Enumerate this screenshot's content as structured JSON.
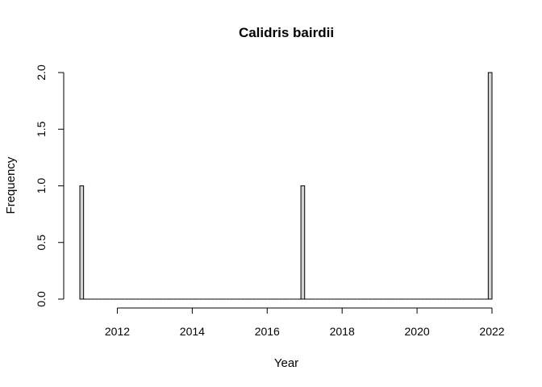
{
  "chart_data": {
    "type": "bar",
    "title": "Calidris bairdii",
    "xlabel": "Year",
    "ylabel": "Frequency",
    "bin_width": 0.1,
    "bins": [
      {
        "x0": 2011.0,
        "x1": 2011.1,
        "value": 1
      },
      {
        "x0": 2016.9,
        "x1": 2017.0,
        "value": 1
      },
      {
        "x0": 2021.9,
        "x1": 2022.0,
        "value": 2
      }
    ],
    "xlim": [
      2011.0,
      2022.0
    ],
    "ylim": [
      0,
      2
    ],
    "xticks": [
      2012,
      2014,
      2016,
      2018,
      2020,
      2022
    ],
    "yticks": [
      0.0,
      0.5,
      1.0,
      1.5,
      2.0
    ],
    "ytick_labels": [
      "0.0",
      "0.5",
      "1.0",
      "1.5",
      "2.0"
    ],
    "grid": false,
    "legend": "none",
    "bar_color": "#d3d3d3",
    "border_color": "#000000"
  }
}
